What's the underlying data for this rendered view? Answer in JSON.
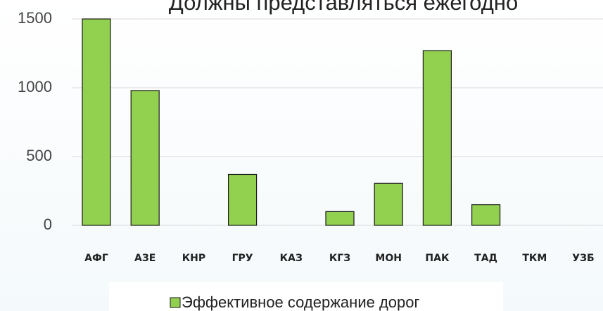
{
  "chart_data": {
    "type": "bar",
    "title": "Должны представляться ежегодно",
    "categories": [
      "АФГ",
      "АЗЕ",
      "КНР",
      "ГРУ",
      "КАЗ",
      "КГЗ",
      "МОН",
      "ПАК",
      "ТАД",
      "ТКМ",
      "УЗБ"
    ],
    "series": [
      {
        "name": "Эффективное содержание дорог",
        "color": "#92d050",
        "values": [
          1500,
          980,
          0,
          370,
          0,
          100,
          305,
          1270,
          150,
          0,
          0
        ]
      }
    ],
    "ylim": [
      0,
      1500
    ],
    "yticks": [
      0,
      500,
      1000,
      1500
    ],
    "grid": true,
    "legend": "bottom"
  }
}
